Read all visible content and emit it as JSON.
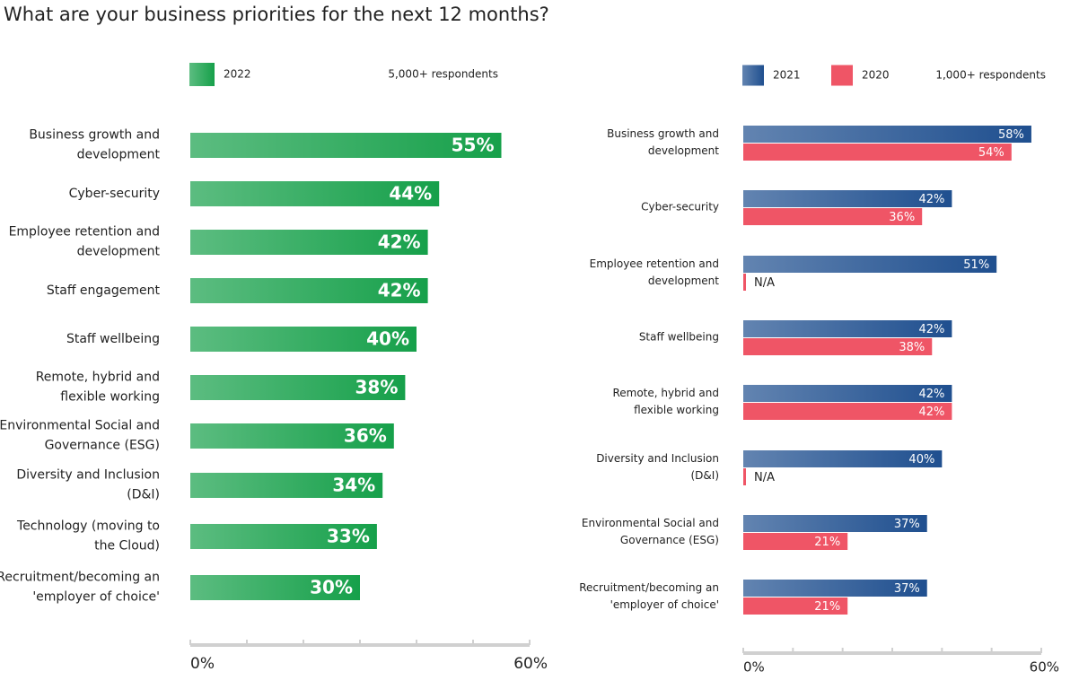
{
  "title": "What are your business priorities for the next 12 months?",
  "chart_data": [
    {
      "type": "bar",
      "orientation": "horizontal",
      "note": "5,000+ respondents",
      "categories": [
        "Business growth and development",
        "Cyber-security",
        "Employee retention and development",
        "Staff engagement",
        "Staff wellbeing",
        "Remote, hybrid and flexible working",
        "Environmental Social and Governance (ESG)",
        "Diversity and Inclusion (D&I)",
        "Technology (moving to the Cloud)",
        "Recruitment/becoming an 'employer of choice'"
      ],
      "series": [
        {
          "name": "2022",
          "color": "#16a04a",
          "gradient": true,
          "values": [
            55,
            44,
            42,
            42,
            40,
            38,
            36,
            34,
            33,
            30
          ],
          "value_labels": [
            "55%",
            "44%",
            "42%",
            "42%",
            "40%",
            "38%",
            "36%",
            "34%",
            "33%",
            "30%"
          ]
        }
      ],
      "xlim": [
        0,
        60
      ],
      "xticks": [
        {
          "value": 0,
          "label": "0%"
        },
        {
          "value": 60,
          "label": "60%"
        }
      ],
      "minor_xticks": [
        10,
        20,
        30,
        40,
        50
      ]
    },
    {
      "type": "bar",
      "orientation": "horizontal",
      "note": "1,000+ respondents",
      "categories": [
        "Business growth and development",
        "Cyber-security",
        "Employee retention and development",
        "Staff wellbeing",
        "Remote, hybrid and flexible working",
        "Diversity and Inclusion (D&I)",
        "Environmental Social and Governance (ESG)",
        "Recruitment/becoming an 'employer of choice'"
      ],
      "series": [
        {
          "name": "2021",
          "color": "#1f4f8f",
          "gradient": true,
          "values": [
            58,
            42,
            51,
            42,
            42,
            40,
            37,
            37
          ],
          "value_labels": [
            "58%",
            "42%",
            "51%",
            "42%",
            "42%",
            "40%",
            "37%",
            "37%"
          ]
        },
        {
          "name": "2020",
          "color": "#ef5566",
          "gradient": false,
          "values": [
            54,
            36,
            null,
            38,
            42,
            null,
            21,
            21
          ],
          "value_labels": [
            "54%",
            "36%",
            "N/A",
            "38%",
            "42%",
            "N/A",
            "21%",
            "21%"
          ]
        }
      ],
      "xlim": [
        0,
        60
      ],
      "xticks": [
        {
          "value": 0,
          "label": "0%"
        },
        {
          "value": 60,
          "label": "60%"
        }
      ],
      "minor_xticks": [
        10,
        20,
        30,
        40,
        50
      ]
    }
  ]
}
